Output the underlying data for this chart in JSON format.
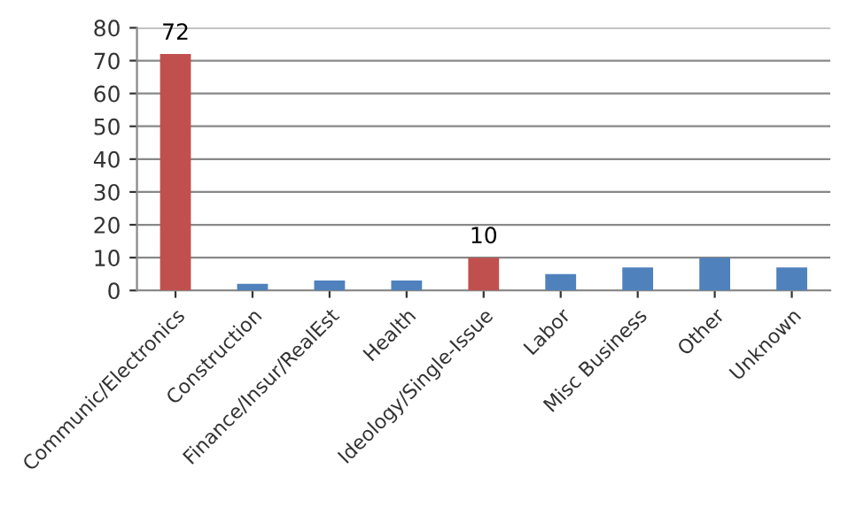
{
  "chart_data": {
    "type": "bar",
    "categories": [
      "Communic/Electronics",
      "Construction",
      "Finance/Insur/RealEst",
      "Health",
      "Ideology/Single-Issue",
      "Labor",
      "Misc Business",
      "Other",
      "Unknown"
    ],
    "values": [
      72,
      2,
      3,
      3,
      10,
      5,
      7,
      10,
      7
    ],
    "colors": [
      "#c0504d",
      "#4f81bd",
      "#4f81bd",
      "#4f81bd",
      "#c0504d",
      "#4f81bd",
      "#4f81bd",
      "#4f81bd",
      "#4f81bd"
    ],
    "value_labels": [
      "72",
      null,
      null,
      null,
      "10",
      null,
      null,
      null,
      null
    ],
    "ylim": [
      0,
      80
    ],
    "yticks": [
      0,
      10,
      20,
      30,
      40,
      50,
      60,
      70,
      80
    ],
    "grid": "y",
    "legend": false
  }
}
